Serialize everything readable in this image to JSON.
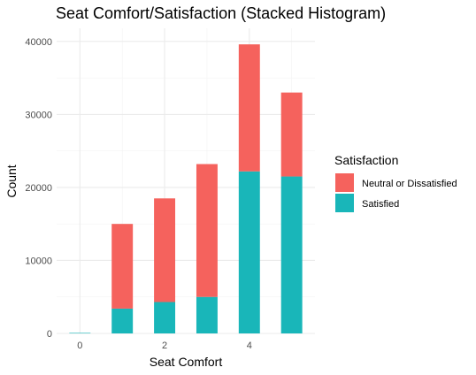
{
  "chart_data": {
    "type": "bar",
    "stacked": true,
    "title": "Seat Comfort/Satisfaction (Stacked Histogram)",
    "xlabel": "Seat Comfort",
    "ylabel": "Count",
    "x": [
      0,
      1,
      2,
      3,
      4,
      5
    ],
    "xlim": [
      -0.55,
      5.55
    ],
    "ylim": [
      0,
      41800
    ],
    "xticks": [
      0,
      2,
      4
    ],
    "yticks": [
      0,
      10000,
      20000,
      30000,
      40000
    ],
    "grid": true,
    "legend": {
      "title": "Satisfaction",
      "position": "right"
    },
    "series": [
      {
        "name": "Satisfied",
        "color": "#19b6b9",
        "values": [
          1,
          3400,
          4300,
          5000,
          22200,
          21500
        ]
      },
      {
        "name": "Neutral or Dissatisfied",
        "color": "#f5625d",
        "values": [
          0,
          11600,
          14200,
          18200,
          17400,
          11500
        ]
      }
    ],
    "legend_order": [
      "Neutral or Dissatisfied",
      "Satisfied"
    ]
  }
}
